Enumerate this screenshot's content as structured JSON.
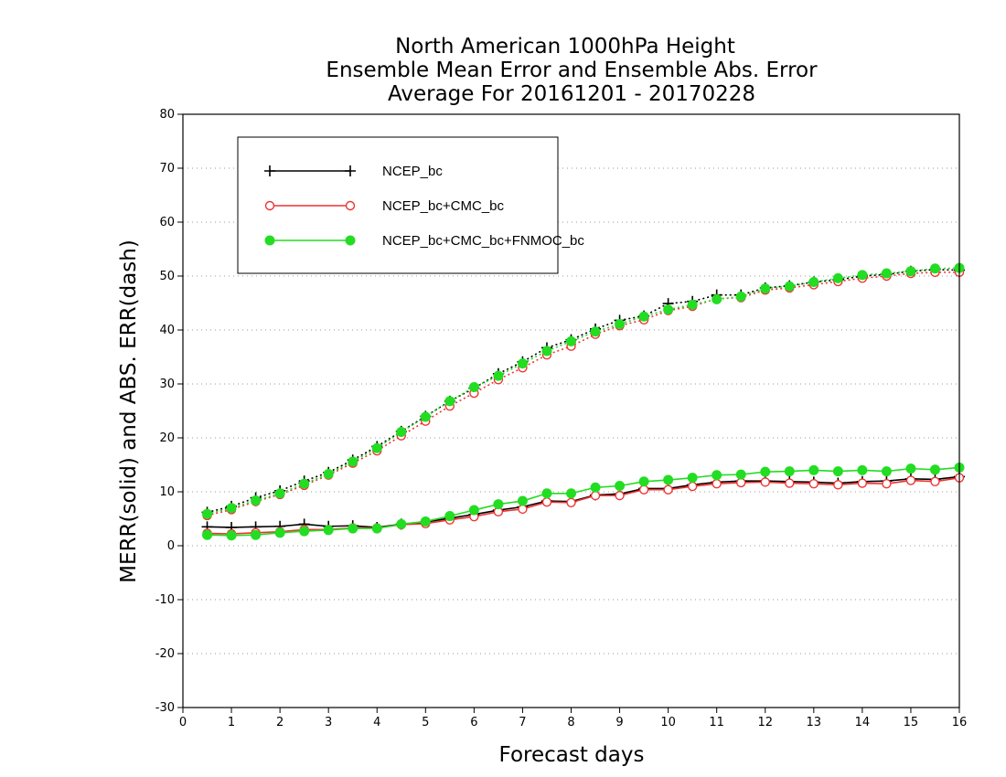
{
  "chart_data": {
    "type": "line",
    "title_lines": [
      "North American 1000hPa Height",
      "Ensemble Mean Error and Ensemble Abs. Error",
      "Average For 20161201 - 20170228"
    ],
    "xlabel": "Forecast days",
    "ylabel": "MERR(solid) and ABS. ERR(dash)",
    "xlim": [
      0,
      16
    ],
    "ylim": [
      -30,
      80
    ],
    "x_ticks": [
      "0",
      "1",
      "2",
      "3",
      "4",
      "5",
      "6",
      "7",
      "8",
      "9",
      "10",
      "11",
      "12",
      "13",
      "14",
      "15",
      "16"
    ],
    "y_ticks": [
      "-30",
      "-20",
      "-10",
      "0",
      "10",
      "20",
      "30",
      "40",
      "50",
      "60",
      "70",
      "80"
    ],
    "grid": "dotted horizontal",
    "legend_position": "top-left",
    "x": [
      0.5,
      1,
      1.5,
      2,
      2.5,
      3,
      3.5,
      4,
      4.5,
      5,
      5.5,
      6,
      6.5,
      7,
      7.5,
      8,
      8.5,
      9,
      9.5,
      10,
      10.5,
      11,
      11.5,
      12,
      12.5,
      13,
      13.5,
      14,
      14.5,
      15,
      15.5,
      16
    ],
    "series": [
      {
        "name": "NCEP_bc",
        "color": "#000000",
        "marker": "plus",
        "merr": [
          3.5,
          3.4,
          3.5,
          3.6,
          4.0,
          3.6,
          3.7,
          3.4,
          4.0,
          4.4,
          5.1,
          5.8,
          6.6,
          7.2,
          8.3,
          8.2,
          9.4,
          9.6,
          10.6,
          10.6,
          11.3,
          11.8,
          12.0,
          12.0,
          11.9,
          11.8,
          11.6,
          11.9,
          12.0,
          12.4,
          12.3,
          12.8
        ],
        "abs_err": [
          6.2,
          7.3,
          8.9,
          10.2,
          12.0,
          13.6,
          15.9,
          18.4,
          21.2,
          24.0,
          26.8,
          29.2,
          31.9,
          34.1,
          36.7,
          38.2,
          40.2,
          41.8,
          42.6,
          44.9,
          45.3,
          46.5,
          46.5,
          47.8,
          48.2,
          48.9,
          49.3,
          50.0,
          50.3,
          50.9,
          51.2,
          51.1
        ]
      },
      {
        "name": "NCEP_bc+CMC_bc",
        "color": "#ee3333",
        "marker": "circle-open",
        "merr": [
          2.3,
          2.2,
          2.4,
          2.6,
          3.0,
          3.0,
          3.3,
          3.3,
          3.9,
          4.1,
          4.8,
          5.4,
          6.3,
          6.8,
          8.1,
          8.0,
          9.3,
          9.3,
          10.4,
          10.4,
          11.0,
          11.5,
          11.7,
          11.8,
          11.6,
          11.5,
          11.3,
          11.6,
          11.5,
          12.1,
          11.9,
          12.6
        ],
        "abs_err": [
          5.6,
          6.7,
          8.2,
          9.5,
          11.2,
          13.1,
          15.3,
          17.6,
          20.4,
          23.1,
          25.9,
          28.3,
          30.8,
          33.0,
          35.4,
          37.0,
          39.2,
          40.8,
          41.9,
          43.6,
          44.4,
          45.8,
          46.0,
          47.4,
          47.8,
          48.4,
          49.0,
          49.6,
          50.0,
          50.5,
          50.7,
          50.7
        ]
      },
      {
        "name": "NCEP_bc+CMC_bc+FNMOC_bc",
        "color": "#22dd22",
        "marker": "circle-filled",
        "merr": [
          2.0,
          1.9,
          2.0,
          2.4,
          2.7,
          2.9,
          3.2,
          3.2,
          4.0,
          4.5,
          5.5,
          6.6,
          7.7,
          8.3,
          9.7,
          9.7,
          10.8,
          11.1,
          11.9,
          12.2,
          12.6,
          13.1,
          13.2,
          13.7,
          13.8,
          14.0,
          13.8,
          14.0,
          13.8,
          14.3,
          14.1,
          14.5
        ],
        "abs_err": [
          5.9,
          7.0,
          8.4,
          9.7,
          11.5,
          13.3,
          15.6,
          18.1,
          21.1,
          23.9,
          26.8,
          29.4,
          31.5,
          33.8,
          36.1,
          37.9,
          39.7,
          41.1,
          42.5,
          43.8,
          44.7,
          45.7,
          46.2,
          47.7,
          48.1,
          48.9,
          49.6,
          50.2,
          50.5,
          50.9,
          51.4,
          51.5
        ]
      }
    ]
  }
}
